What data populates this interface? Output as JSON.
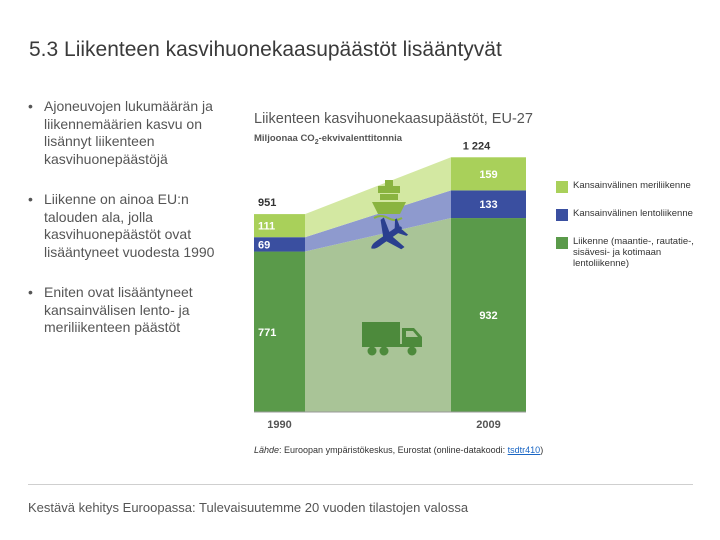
{
  "slide": {
    "title": "5.3 Liikenteen kasvihuonekaasupäästöt lisääntyvät",
    "bullets": [
      "Ajoneuvojen lukumäärän ja liikennemäärien kasvu on lisännyt liikenteen kasvihuonepäästöjä",
      "Liikenne on ainoa EU:n talouden ala, jolla kasvihuonepäästöt ovat lisääntyneet vuodesta 1990",
      "Eniten ovat lisääntyneet kansainvälisen lento- ja meriliikenteen päästöt"
    ],
    "footer": "Kestävä kehitys Euroopassa: Tulevaisuutemme 20 vuoden tilastojen valossa"
  },
  "source": {
    "label": "Lähde",
    "text": ": Euroopan ympäristökeskus, Eurostat (online-datakoodi: ",
    "code": "tsdtr410",
    "close": ")"
  },
  "chart_data": {
    "type": "bar",
    "title": "Liikenteen kasvihuonekaasupäästöt, EU-27",
    "ylabel_prefix": "Miljoonaa CO",
    "ylabel_sub": "2",
    "ylabel_suffix": "-ekvivalenttitonnia",
    "stacked": true,
    "categories": [
      "1990",
      "2009"
    ],
    "totals": [
      "951",
      "1 224"
    ],
    "series": [
      {
        "name": "Liikenne (maantie-, rautatie-, sisävesi- ja kotimaan lentoliikenne)",
        "values": [
          771,
          932
        ],
        "value_labels": [
          "771",
          "932"
        ],
        "color": "#5a9a4a"
      },
      {
        "name": "Kansainvälinen lentoliikenne",
        "values": [
          69,
          133
        ],
        "value_labels": [
          "69",
          "133"
        ],
        "color": "#3a4fa0"
      },
      {
        "name": "Kansainvälinen meriliikenne",
        "values": [
          111,
          159
        ],
        "value_labels": [
          "111",
          "159"
        ],
        "color": "#a9d05a"
      }
    ],
    "legend_order": [
      2,
      1,
      0
    ],
    "legend_position": "right",
    "icons": [
      "ship-icon",
      "airplane-icon",
      "truck-icon"
    ],
    "colors": {
      "road_band": "#a9c497",
      "air_band": "#8e9ace",
      "sea_band": "#d3e8a2"
    }
  }
}
